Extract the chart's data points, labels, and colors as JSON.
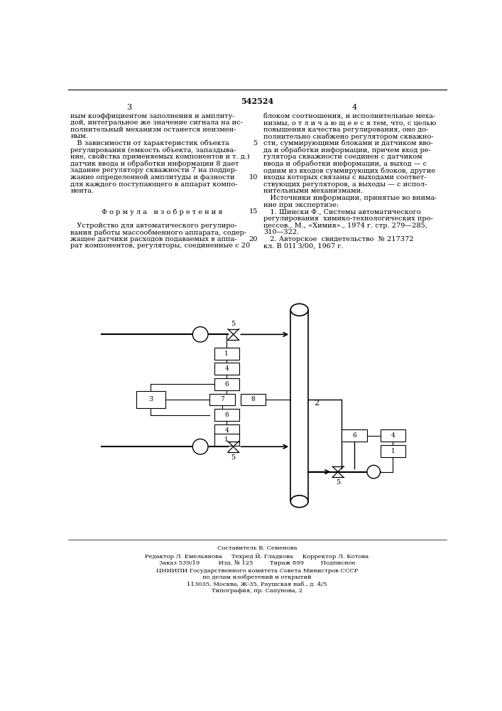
{
  "bg_color": "#ffffff",
  "patent_number": "542524",
  "page_numbers": [
    "3",
    "4"
  ],
  "text_col_left": [
    "ным коэффициентом заполнения и амплиту-",
    "дой, интегральное же значение сигнала на ис-",
    "полнительный механизм останется неизмен-",
    "ным.",
    "   В зависимости от характеристик объекта",
    "регулирования (емкость объекта, запаздыва-",
    "ние, свойства применяемых компонентов и т. д.)",
    "датчик ввода и обработки информации 8 дает",
    "задание регулятору скважности 7 на поддер-",
    "жание определенной амплитуды и фазности",
    "для каждого поступающего в аппарат компо-",
    "нента.",
    "",
    "",
    "Ф о р м у л а   и з о б р е т е н и я",
    "",
    "   Устройство для автоматического регулиро-",
    "вания работы массообменного аппарата, содер-",
    "жащее датчики расходов подаваемых в аппа-",
    "рат компонентов, регуляторы, соединенные с 20"
  ],
  "text_col_right": [
    "блоком соотношения, и исполнительные меха-",
    "низмы, о т л и ч а ю щ е е с я тем, что, с целью",
    "повышения качества регулирования, оно до-",
    "полнительно снабжено регулятором скважно-",
    "сти, суммирующими блоками и датчиком вво-",
    "да и обработки информации, причем вход ре-",
    "гулятора скважности соединен с датчиком",
    "ввода и обработки информации, а выход — с",
    "одним из входов суммирующих блоков, другие",
    "входы которых связаны с выходами соответ-",
    "ствующих регуляторов, а выходы — с испол-",
    "нительными механизмами.",
    "   Источники информации, принятые во внима-",
    "ние при экспертизе:",
    "   1. Шински Ф., Системы автоматического",
    "регулирования  химико-технологических про-",
    "цессов., М., «Химия»., 1974 г. стр. 279—285,",
    "310—322.",
    "   2. Авторское  свидетельство  № 217372",
    "кл. В 01I 3/00, 1967 г."
  ],
  "line_numbers_right": [
    " ",
    " ",
    " ",
    " ",
    "5",
    " ",
    " ",
    " ",
    " ",
    "10",
    " ",
    " ",
    " ",
    " ",
    "15",
    " ",
    " ",
    " ",
    "20",
    " "
  ],
  "footer_lines": [
    "Составитель В. Семенова",
    "Редактор Л. Емельянова     Техред Й. Гладкова     Корректор Л. Котова",
    "Заказ 539/19          Изд. № 125         Тираж 899         Подписное",
    "ЦНИИПИ Государственного комитета Совета Министров СССР",
    "по делам изобретений и открытий",
    "113035, Москва, Ж-35, Раушская наб., д. 4/5",
    "Типография, пр. Сапунова, 2"
  ]
}
